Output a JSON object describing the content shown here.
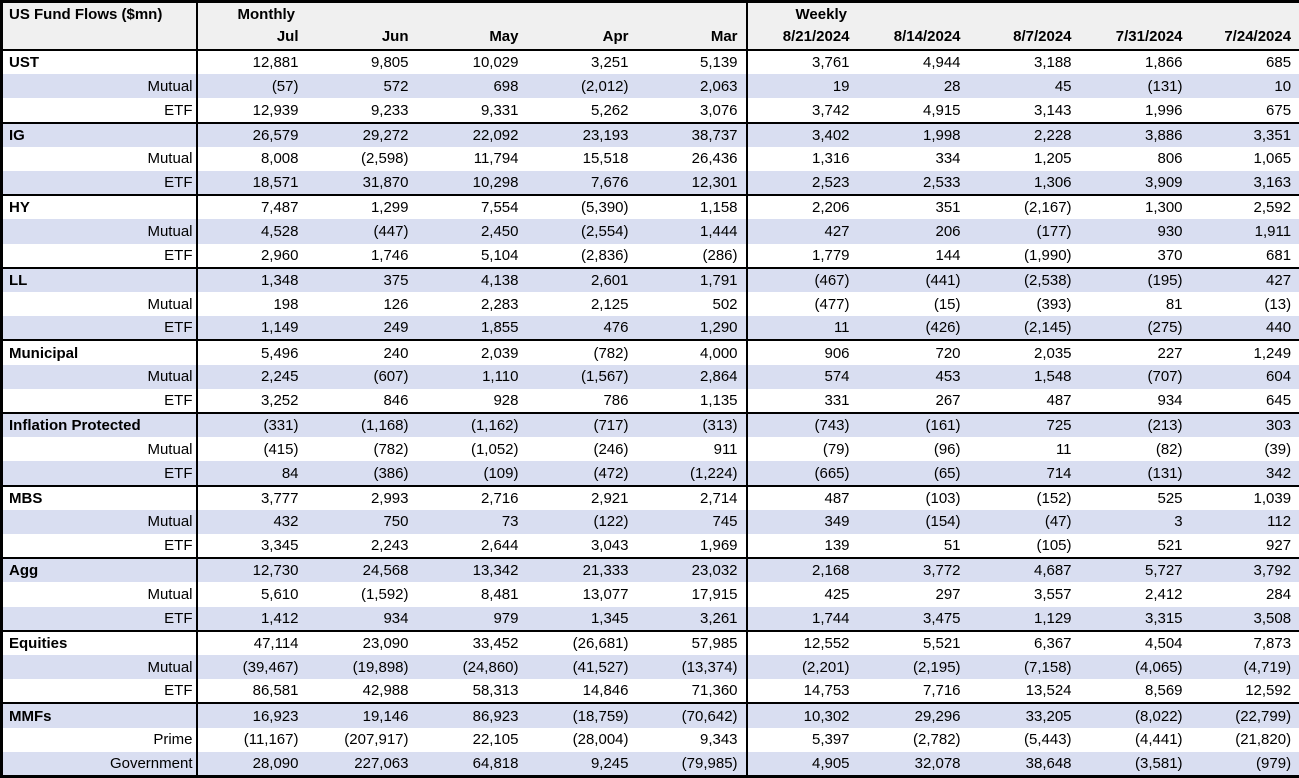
{
  "colors": {
    "stripe": "#d9def1",
    "header_bg": "#f0f0f0",
    "border": "#000000",
    "row_bg": "#ffffff"
  },
  "chart_data": {
    "type": "table",
    "title": "US Fund Flows ($mn)",
    "column_groups": [
      {
        "label": "Monthly",
        "columns": [
          "Jul",
          "Jun",
          "May",
          "Apr",
          "Mar"
        ]
      },
      {
        "label": "Weekly",
        "columns": [
          "8/21/2024",
          "8/14/2024",
          "8/7/2024",
          "7/31/2024",
          "7/24/2024"
        ]
      }
    ],
    "negative_format": "parentheses",
    "rows": [
      {
        "label": "UST",
        "is_group": true,
        "values": [
          12881,
          9805,
          10029,
          3251,
          5139,
          3761,
          4944,
          3188,
          1866,
          685
        ]
      },
      {
        "label": "Mutual",
        "is_group": false,
        "values": [
          -57,
          572,
          698,
          -2012,
          2063,
          19,
          28,
          45,
          -131,
          10
        ]
      },
      {
        "label": "ETF",
        "is_group": false,
        "values": [
          12939,
          9233,
          9331,
          5262,
          3076,
          3742,
          4915,
          3143,
          1996,
          675
        ]
      },
      {
        "label": "IG",
        "is_group": true,
        "values": [
          26579,
          29272,
          22092,
          23193,
          38737,
          3402,
          1998,
          2228,
          3886,
          3351
        ]
      },
      {
        "label": "Mutual",
        "is_group": false,
        "values": [
          8008,
          -2598,
          11794,
          15518,
          26436,
          1316,
          334,
          1205,
          806,
          1065
        ]
      },
      {
        "label": "ETF",
        "is_group": false,
        "values": [
          18571,
          31870,
          10298,
          7676,
          12301,
          2523,
          2533,
          1306,
          3909,
          3163
        ]
      },
      {
        "label": "HY",
        "is_group": true,
        "values": [
          7487,
          1299,
          7554,
          -5390,
          1158,
          2206,
          351,
          -2167,
          1300,
          2592
        ]
      },
      {
        "label": "Mutual",
        "is_group": false,
        "values": [
          4528,
          -447,
          2450,
          -2554,
          1444,
          427,
          206,
          -177,
          930,
          1911
        ]
      },
      {
        "label": "ETF",
        "is_group": false,
        "values": [
          2960,
          1746,
          5104,
          -2836,
          -286,
          1779,
          144,
          -1990,
          370,
          681
        ]
      },
      {
        "label": "LL",
        "is_group": true,
        "values": [
          1348,
          375,
          4138,
          2601,
          1791,
          -467,
          -441,
          -2538,
          -195,
          427
        ]
      },
      {
        "label": "Mutual",
        "is_group": false,
        "values": [
          198,
          126,
          2283,
          2125,
          502,
          -477,
          -15,
          -393,
          81,
          -13
        ]
      },
      {
        "label": "ETF",
        "is_group": false,
        "values": [
          1149,
          249,
          1855,
          476,
          1290,
          11,
          -426,
          -2145,
          -275,
          440
        ]
      },
      {
        "label": "Municipal",
        "is_group": true,
        "values": [
          5496,
          240,
          2039,
          -782,
          4000,
          906,
          720,
          2035,
          227,
          1249
        ]
      },
      {
        "label": "Mutual",
        "is_group": false,
        "values": [
          2245,
          -607,
          1110,
          -1567,
          2864,
          574,
          453,
          1548,
          -707,
          604
        ]
      },
      {
        "label": "ETF",
        "is_group": false,
        "values": [
          3252,
          846,
          928,
          786,
          1135,
          331,
          267,
          487,
          934,
          645
        ]
      },
      {
        "label": "Inflation Protected",
        "is_group": true,
        "values": [
          -331,
          -1168,
          -1162,
          -717,
          -313,
          -743,
          -161,
          725,
          -213,
          303
        ]
      },
      {
        "label": "Mutual",
        "is_group": false,
        "values": [
          -415,
          -782,
          -1052,
          -246,
          911,
          -79,
          -96,
          11,
          -82,
          -39
        ]
      },
      {
        "label": "ETF",
        "is_group": false,
        "values": [
          84,
          -386,
          -109,
          -472,
          -1224,
          -665,
          -65,
          714,
          -131,
          342
        ]
      },
      {
        "label": "MBS",
        "is_group": true,
        "values": [
          3777,
          2993,
          2716,
          2921,
          2714,
          487,
          -103,
          -152,
          525,
          1039
        ]
      },
      {
        "label": "Mutual",
        "is_group": false,
        "values": [
          432,
          750,
          73,
          -122,
          745,
          349,
          -154,
          -47,
          3,
          112
        ]
      },
      {
        "label": "ETF",
        "is_group": false,
        "values": [
          3345,
          2243,
          2644,
          3043,
          1969,
          139,
          51,
          -105,
          521,
          927
        ]
      },
      {
        "label": "Agg",
        "is_group": true,
        "values": [
          12730,
          24568,
          13342,
          21333,
          23032,
          2168,
          3772,
          4687,
          5727,
          3792
        ]
      },
      {
        "label": "Mutual",
        "is_group": false,
        "values": [
          5610,
          -1592,
          8481,
          13077,
          17915,
          425,
          297,
          3557,
          2412,
          284
        ]
      },
      {
        "label": "ETF",
        "is_group": false,
        "values": [
          1412,
          934,
          979,
          1345,
          3261,
          1744,
          3475,
          1129,
          3315,
          3508
        ]
      },
      {
        "label": "Equities",
        "is_group": true,
        "values": [
          47114,
          23090,
          33452,
          -26681,
          57985,
          12552,
          5521,
          6367,
          4504,
          7873
        ]
      },
      {
        "label": "Mutual",
        "is_group": false,
        "values": [
          -39467,
          -19898,
          -24860,
          -41527,
          -13374,
          -2201,
          -2195,
          -7158,
          -4065,
          -4719
        ]
      },
      {
        "label": "ETF",
        "is_group": false,
        "values": [
          86581,
          42988,
          58313,
          14846,
          71360,
          14753,
          7716,
          13524,
          8569,
          12592
        ]
      },
      {
        "label": "MMFs",
        "is_group": true,
        "values": [
          16923,
          19146,
          86923,
          -18759,
          -70642,
          10302,
          29296,
          33205,
          -8022,
          -22799
        ]
      },
      {
        "label": "Prime",
        "is_group": false,
        "values": [
          -11167,
          -207917,
          22105,
          -28004,
          9343,
          5397,
          -2782,
          -5443,
          -4441,
          -21820
        ]
      },
      {
        "label": "Government",
        "is_group": false,
        "values": [
          28090,
          227063,
          64818,
          9245,
          -79985,
          4905,
          32078,
          38648,
          -3581,
          -979
        ]
      }
    ]
  }
}
